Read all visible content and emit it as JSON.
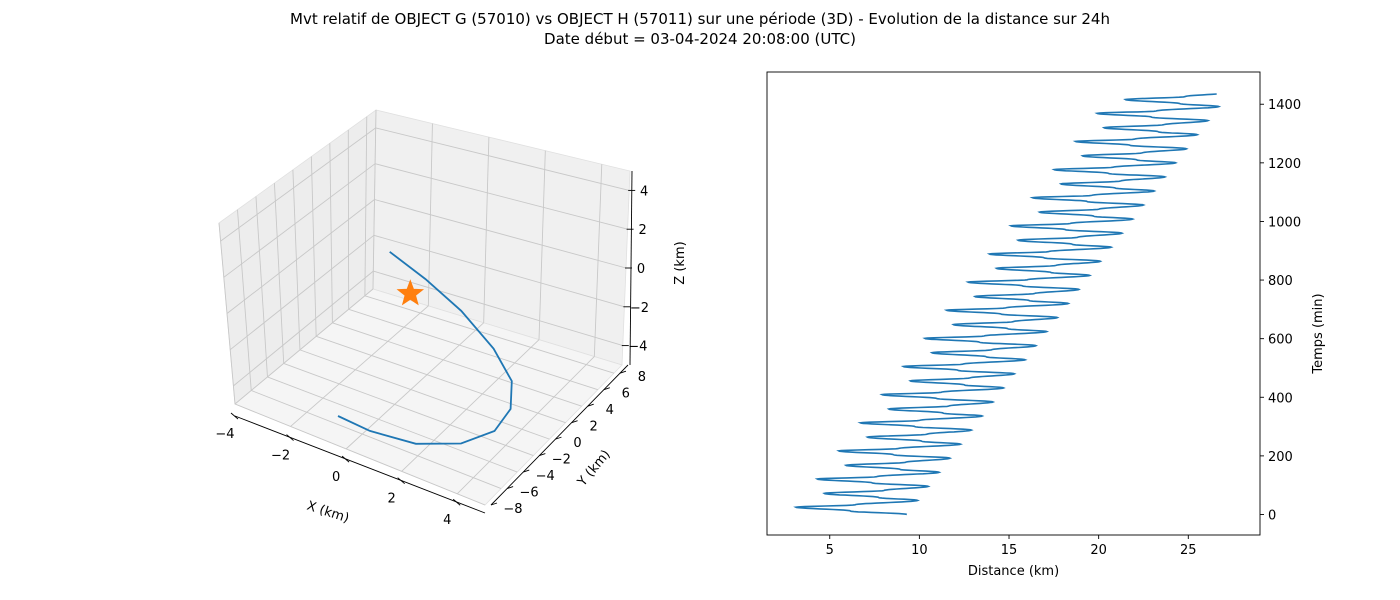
{
  "figure": {
    "title_line1": "Mvt relatif de OBJECT G (57010) vs OBJECT H (57011) sur une période (3D) - Evolution de la distance sur 24h",
    "title_line2": "Date début = 03-04-2024 20:08:00 (UTC)"
  },
  "chart_data": [
    {
      "type": "line3d",
      "xlabel": "X (km)",
      "ylabel": "Y (km)",
      "zlabel": "Z (km)",
      "xlim": [
        -4,
        5
      ],
      "ylim": [
        -8,
        9
      ],
      "zlim": [
        -5,
        5
      ],
      "xticks": [
        "−4",
        "−2",
        "0",
        "2",
        "4"
      ],
      "yticks": [
        "−8",
        "−6",
        "−4",
        "−2",
        "0",
        "2",
        "4",
        "6",
        "8"
      ],
      "zticks": [
        "−4",
        "−2",
        "0",
        "2",
        "4"
      ],
      "grid": true,
      "series": [
        {
          "points": [
            [
              -1.5,
              2.6,
              0.6
            ],
            [
              0.0,
              1.8,
              0.1
            ],
            [
              1.5,
              1.0,
              -0.6
            ],
            [
              3.0,
              -0.2,
              -1.4
            ],
            [
              4.0,
              -1.4,
              -2.1
            ],
            [
              4.4,
              -2.9,
              -2.7
            ],
            [
              4.3,
              -4.5,
              -3.2
            ],
            [
              3.6,
              -6.2,
              -3.5
            ],
            [
              2.4,
              -7.6,
              -3.6
            ],
            [
              1.0,
              -8.4,
              -3.4
            ],
            [
              -0.1,
              -8.5,
              -3.2
            ]
          ],
          "color": "#1f77b4"
        },
        {
          "points": [
            [
              0.0,
              0.0,
              0.0
            ]
          ],
          "marker": "star",
          "color": "#ff7f0e"
        }
      ]
    },
    {
      "type": "line",
      "xlabel": "Distance (km)",
      "ylabel": "Temps (min)",
      "xlim": [
        1.5,
        29.0
      ],
      "ylim": [
        -70,
        1510
      ],
      "xticks": [
        5,
        10,
        15,
        20,
        25
      ],
      "yticks": [
        0,
        200,
        400,
        600,
        800,
        1000,
        1200,
        1400
      ],
      "yaxis_position": "right",
      "grid": false,
      "series": [
        {
          "color": "#1f77b4",
          "period_min": 96,
          "first_cycle": {
            "t": [
              0,
              12,
              25,
              33,
              48,
              58,
              72,
              82,
              96
            ],
            "d": [
              9.3,
              6.0,
              2.8,
              6.0,
              9.3,
              7.0,
              3.8,
              7.0,
              9.3
            ]
          },
          "growth_km_per_cycle": 1.2,
          "t_end": 1435
        }
      ]
    }
  ]
}
